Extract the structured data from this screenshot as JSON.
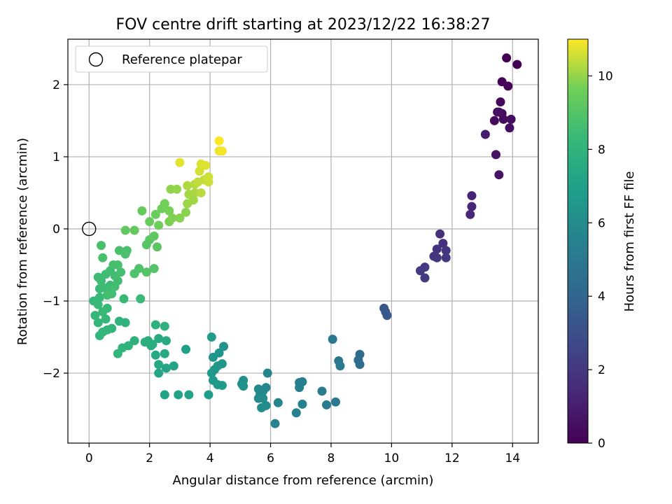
{
  "chart_data": {
    "type": "scatter",
    "title": "FOV centre drift starting at 2023/12/22 16:38:27",
    "xlabel": "Angular distance from reference (arcmin)",
    "ylabel": "Rotation from reference (arcmin)",
    "xlim": [
      -0.7,
      14.85
    ],
    "ylim": [
      -2.97,
      2.63
    ],
    "x_ticks": [
      0,
      2,
      4,
      6,
      8,
      10,
      12,
      14
    ],
    "y_ticks": [
      -2,
      -1,
      0,
      1,
      2
    ],
    "grid": true,
    "legend": {
      "position": "top-left",
      "entries": [
        "Reference platepar"
      ]
    },
    "reference_point": {
      "x": 0,
      "y": 0,
      "label": "Reference platepar"
    },
    "colorbar": {
      "label": "Hours from first FF file",
      "range": [
        0,
        11
      ],
      "ticks": [
        0,
        2,
        4,
        6,
        8,
        10
      ],
      "colormap": "viridis"
    },
    "points": [
      [
        13.8,
        2.37,
        0.0
      ],
      [
        14.15,
        2.28,
        0.05
      ],
      [
        13.65,
        2.04,
        0.1
      ],
      [
        13.85,
        1.98,
        0.15
      ],
      [
        13.6,
        1.76,
        0.2
      ],
      [
        13.5,
        1.62,
        0.25
      ],
      [
        13.65,
        1.6,
        0.3
      ],
      [
        13.4,
        1.5,
        0.35
      ],
      [
        13.7,
        1.52,
        0.4
      ],
      [
        13.95,
        1.52,
        0.45
      ],
      [
        13.9,
        1.4,
        0.5
      ],
      [
        13.55,
        1.62,
        0.55
      ],
      [
        13.45,
        1.03,
        0.6
      ],
      [
        13.55,
        0.75,
        0.65
      ],
      [
        13.1,
        1.31,
        1.0
      ],
      [
        12.65,
        0.46,
        1.2
      ],
      [
        12.65,
        0.31,
        1.3
      ],
      [
        12.6,
        0.2,
        1.4
      ],
      [
        11.6,
        -0.07,
        1.7
      ],
      [
        11.7,
        -0.2,
        1.75
      ],
      [
        11.5,
        -0.28,
        1.8
      ],
      [
        11.8,
        -0.3,
        1.85
      ],
      [
        11.4,
        -0.38,
        1.9
      ],
      [
        11.5,
        -0.4,
        1.95
      ],
      [
        11.8,
        -0.4,
        2.0
      ],
      [
        11.1,
        -0.53,
        2.1
      ],
      [
        10.95,
        -0.58,
        2.15
      ],
      [
        11.1,
        -0.68,
        2.2
      ],
      [
        9.75,
        -1.1,
        3.3
      ],
      [
        9.8,
        -1.15,
        3.35
      ],
      [
        9.85,
        -1.2,
        3.4
      ],
      [
        8.95,
        -1.74,
        4.3
      ],
      [
        8.9,
        -1.82,
        4.35
      ],
      [
        8.95,
        -1.88,
        4.4
      ],
      [
        8.05,
        -1.53,
        4.9
      ],
      [
        8.25,
        -1.83,
        4.95
      ],
      [
        8.3,
        -1.9,
        5.0
      ],
      [
        8.15,
        -2.4,
        5.05
      ],
      [
        7.85,
        -2.44,
        5.1
      ],
      [
        7.7,
        -2.25,
        5.15
      ],
      [
        7.05,
        -2.12,
        5.3
      ],
      [
        6.95,
        -2.13,
        5.35
      ],
      [
        6.95,
        -2.2,
        5.4
      ],
      [
        7.05,
        -2.43,
        5.45
      ],
      [
        6.85,
        -2.55,
        5.5
      ],
      [
        6.15,
        -2.7,
        5.55
      ],
      [
        6.25,
        -2.41,
        5.6
      ],
      [
        5.9,
        -2.0,
        5.65
      ],
      [
        5.85,
        -2.2,
        5.7
      ],
      [
        5.75,
        -2.25,
        5.75
      ],
      [
        5.6,
        -2.22,
        5.8
      ],
      [
        5.65,
        -2.3,
        5.85
      ],
      [
        5.6,
        -2.35,
        5.9
      ],
      [
        5.75,
        -2.35,
        5.95
      ],
      [
        5.85,
        -2.45,
        6.0
      ],
      [
        5.7,
        -2.48,
        6.05
      ],
      [
        5.1,
        -2.1,
        6.1
      ],
      [
        5.05,
        -2.15,
        6.15
      ],
      [
        5.1,
        -2.18,
        6.2
      ],
      [
        4.45,
        -1.63,
        6.35
      ],
      [
        4.3,
        -1.72,
        6.4
      ],
      [
        4.1,
        -1.78,
        6.45
      ],
      [
        4.4,
        -1.87,
        6.5
      ],
      [
        4.25,
        -1.9,
        6.55
      ],
      [
        4.15,
        -1.95,
        6.6
      ],
      [
        4.05,
        -2.0,
        6.65
      ],
      [
        4.1,
        -2.1,
        6.7
      ],
      [
        4.25,
        -2.16,
        6.75
      ],
      [
        4.4,
        -2.17,
        6.8
      ],
      [
        4.05,
        -1.5,
        6.85
      ],
      [
        3.95,
        -2.3,
        6.9
      ],
      [
        3.2,
        -1.67,
        7.0
      ],
      [
        3.3,
        -2.3,
        7.05
      ],
      [
        2.95,
        -2.3,
        7.1
      ],
      [
        2.5,
        -2.3,
        7.15
      ],
      [
        2.8,
        -1.9,
        7.2
      ],
      [
        2.55,
        -1.93,
        7.25
      ],
      [
        2.3,
        -2.0,
        7.3
      ],
      [
        2.3,
        -1.88,
        7.35
      ],
      [
        2.5,
        -1.73,
        7.4
      ],
      [
        2.2,
        -1.75,
        7.45
      ],
      [
        2.55,
        -1.55,
        7.5
      ],
      [
        2.3,
        -1.52,
        7.55
      ],
      [
        2.1,
        -1.6,
        7.6
      ],
      [
        1.95,
        -1.55,
        7.65
      ],
      [
        2.05,
        -1.62,
        7.7
      ],
      [
        1.85,
        -1.57,
        7.75
      ],
      [
        2.2,
        -1.33,
        7.8
      ],
      [
        2.5,
        -1.35,
        7.85
      ],
      [
        1.5,
        -1.55,
        7.9
      ],
      [
        1.2,
        -1.3,
        7.95
      ],
      [
        1.0,
        -1.28,
        8.0
      ],
      [
        1.3,
        -1.62,
        8.05
      ],
      [
        1.1,
        -1.65,
        8.1
      ],
      [
        0.95,
        -1.73,
        8.12
      ],
      [
        0.75,
        -1.38,
        8.14
      ],
      [
        0.6,
        -1.4,
        8.16
      ],
      [
        0.45,
        -1.43,
        8.18
      ],
      [
        0.35,
        -1.48,
        8.2
      ],
      [
        0.3,
        -1.3,
        8.22
      ],
      [
        0.55,
        -1.25,
        8.24
      ],
      [
        0.2,
        -1.2,
        8.26
      ],
      [
        0.15,
        -1.0,
        8.28
      ],
      [
        0.35,
        -0.95,
        8.3
      ],
      [
        0.6,
        -1.1,
        8.32
      ],
      [
        0.3,
        -1.05,
        8.34
      ],
      [
        0.45,
        -1.15,
        8.36
      ],
      [
        1.15,
        -0.97,
        8.38
      ],
      [
        1.7,
        -0.97,
        8.4
      ],
      [
        0.35,
        -0.83,
        8.42
      ],
      [
        0.55,
        -0.82,
        8.44
      ],
      [
        0.4,
        -0.72,
        8.46
      ],
      [
        0.7,
        -0.78,
        8.48
      ],
      [
        0.3,
        -0.67,
        8.5
      ],
      [
        0.55,
        -0.63,
        8.52
      ],
      [
        0.7,
        -0.58,
        8.54
      ],
      [
        0.85,
        -0.65,
        8.56
      ],
      [
        0.95,
        -0.72,
        8.58
      ],
      [
        0.75,
        -0.9,
        8.6
      ],
      [
        0.85,
        -0.8,
        8.62
      ],
      [
        0.6,
        -0.92,
        8.64
      ],
      [
        1.05,
        -0.6,
        8.66
      ],
      [
        0.8,
        -0.5,
        8.68
      ],
      [
        0.95,
        -0.5,
        8.7
      ],
      [
        0.45,
        -0.4,
        8.72
      ],
      [
        0.4,
        -0.23,
        8.74
      ],
      [
        1.0,
        -0.3,
        8.76
      ],
      [
        1.25,
        -0.3,
        8.78
      ],
      [
        1.2,
        -0.35,
        8.8
      ],
      [
        1.5,
        -0.62,
        8.85
      ],
      [
        1.65,
        -0.55,
        8.9
      ],
      [
        1.9,
        -0.6,
        9.0
      ],
      [
        2.15,
        -0.55,
        9.05
      ],
      [
        1.9,
        -0.22,
        9.1
      ],
      [
        2.0,
        -0.15,
        9.15
      ],
      [
        2.25,
        -0.25,
        9.2
      ],
      [
        2.15,
        -0.1,
        9.25
      ],
      [
        1.2,
        -0.02,
        9.3
      ],
      [
        1.5,
        -0.02,
        9.35
      ],
      [
        1.75,
        0.25,
        9.4
      ],
      [
        2.0,
        0.1,
        9.45
      ],
      [
        2.2,
        0.2,
        9.5
      ],
      [
        2.3,
        0.05,
        9.55
      ],
      [
        2.4,
        0.28,
        9.6
      ],
      [
        2.5,
        0.35,
        9.65
      ],
      [
        2.65,
        0.25,
        9.7
      ],
      [
        2.65,
        0.1,
        9.75
      ],
      [
        2.75,
        0.15,
        9.8
      ],
      [
        3.0,
        0.15,
        9.85
      ],
      [
        3.2,
        0.23,
        9.9
      ],
      [
        2.7,
        0.55,
        9.95
      ],
      [
        2.9,
        0.55,
        10.0
      ],
      [
        3.25,
        0.35,
        10.05
      ],
      [
        3.45,
        0.4,
        10.1
      ],
      [
        3.3,
        0.48,
        10.15
      ],
      [
        3.5,
        0.5,
        10.2
      ],
      [
        3.25,
        0.6,
        10.25
      ],
      [
        3.5,
        0.62,
        10.3
      ],
      [
        3.7,
        0.5,
        10.35
      ],
      [
        3.6,
        0.65,
        10.4
      ],
      [
        3.8,
        0.68,
        10.45
      ],
      [
        3.95,
        0.65,
        10.5
      ],
      [
        3.95,
        0.72,
        10.55
      ],
      [
        3.65,
        0.8,
        10.6
      ],
      [
        3.7,
        0.9,
        10.65
      ],
      [
        3.85,
        0.88,
        10.7
      ],
      [
        3.0,
        0.92,
        10.75
      ],
      [
        4.3,
        1.08,
        10.85
      ],
      [
        4.4,
        1.08,
        10.9
      ],
      [
        4.3,
        1.22,
        11.0
      ]
    ]
  }
}
